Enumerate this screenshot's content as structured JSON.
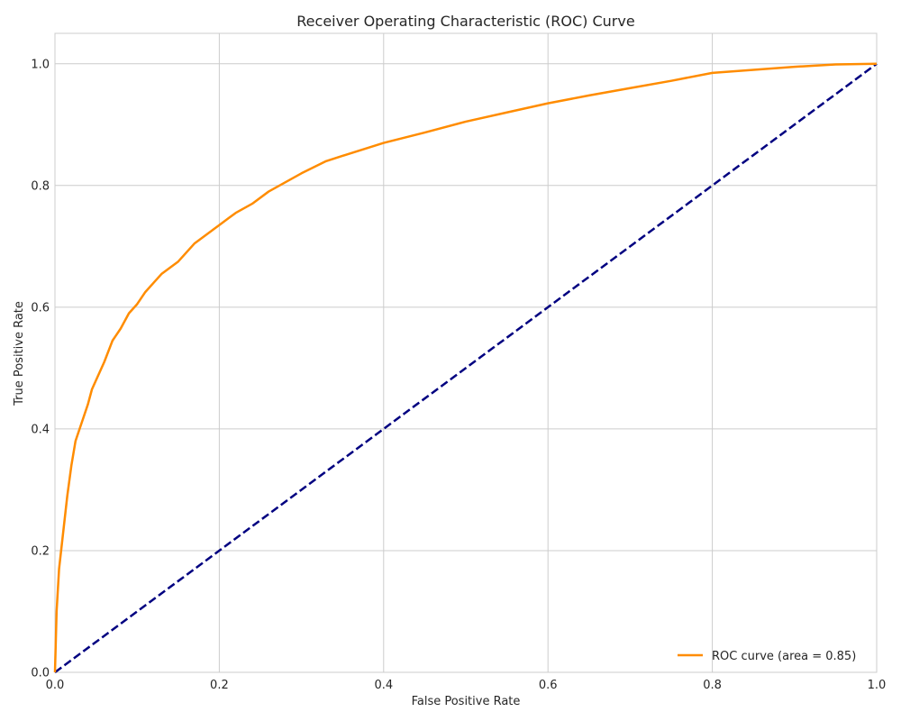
{
  "chart_data": {
    "type": "line",
    "title": "Receiver Operating Characteristic (ROC) Curve",
    "xlabel": "False Positive Rate",
    "ylabel": "True Positive Rate",
    "xlim": [
      0.0,
      1.0
    ],
    "ylim": [
      0.0,
      1.05
    ],
    "xticks": [
      0.0,
      0.2,
      0.4,
      0.6,
      0.8,
      1.0
    ],
    "yticks": [
      0.0,
      0.2,
      0.4,
      0.6,
      0.8,
      1.0
    ],
    "xtick_labels": [
      "0.0",
      "0.2",
      "0.4",
      "0.6",
      "0.8",
      "1.0"
    ],
    "ytick_labels": [
      "0.0",
      "0.2",
      "0.4",
      "0.6",
      "0.8",
      "1.0"
    ],
    "grid": true,
    "legend_position": "bottom-right",
    "series": [
      {
        "name": "ROC curve (area = 0.85)",
        "color": "#ff8c00",
        "style": "solid",
        "x": [
          0.0,
          0.002,
          0.005,
          0.01,
          0.015,
          0.02,
          0.025,
          0.03,
          0.035,
          0.04,
          0.045,
          0.05,
          0.06,
          0.07,
          0.08,
          0.09,
          0.1,
          0.11,
          0.12,
          0.13,
          0.14,
          0.15,
          0.16,
          0.17,
          0.18,
          0.19,
          0.2,
          0.22,
          0.24,
          0.26,
          0.28,
          0.3,
          0.33,
          0.36,
          0.4,
          0.45,
          0.5,
          0.55,
          0.6,
          0.65,
          0.7,
          0.75,
          0.8,
          0.85,
          0.9,
          0.95,
          1.0
        ],
        "y": [
          0.0,
          0.1,
          0.17,
          0.23,
          0.29,
          0.34,
          0.38,
          0.4,
          0.42,
          0.44,
          0.465,
          0.48,
          0.51,
          0.545,
          0.565,
          0.59,
          0.605,
          0.625,
          0.64,
          0.655,
          0.665,
          0.675,
          0.69,
          0.705,
          0.715,
          0.725,
          0.735,
          0.755,
          0.77,
          0.79,
          0.805,
          0.82,
          0.84,
          0.853,
          0.87,
          0.887,
          0.905,
          0.92,
          0.935,
          0.948,
          0.96,
          0.972,
          0.985,
          0.99,
          0.995,
          0.999,
          1.0
        ]
      },
      {
        "name": "",
        "color": "#000080",
        "style": "dashed",
        "x": [
          0.0,
          1.0
        ],
        "y": [
          0.0,
          1.0
        ]
      }
    ]
  }
}
